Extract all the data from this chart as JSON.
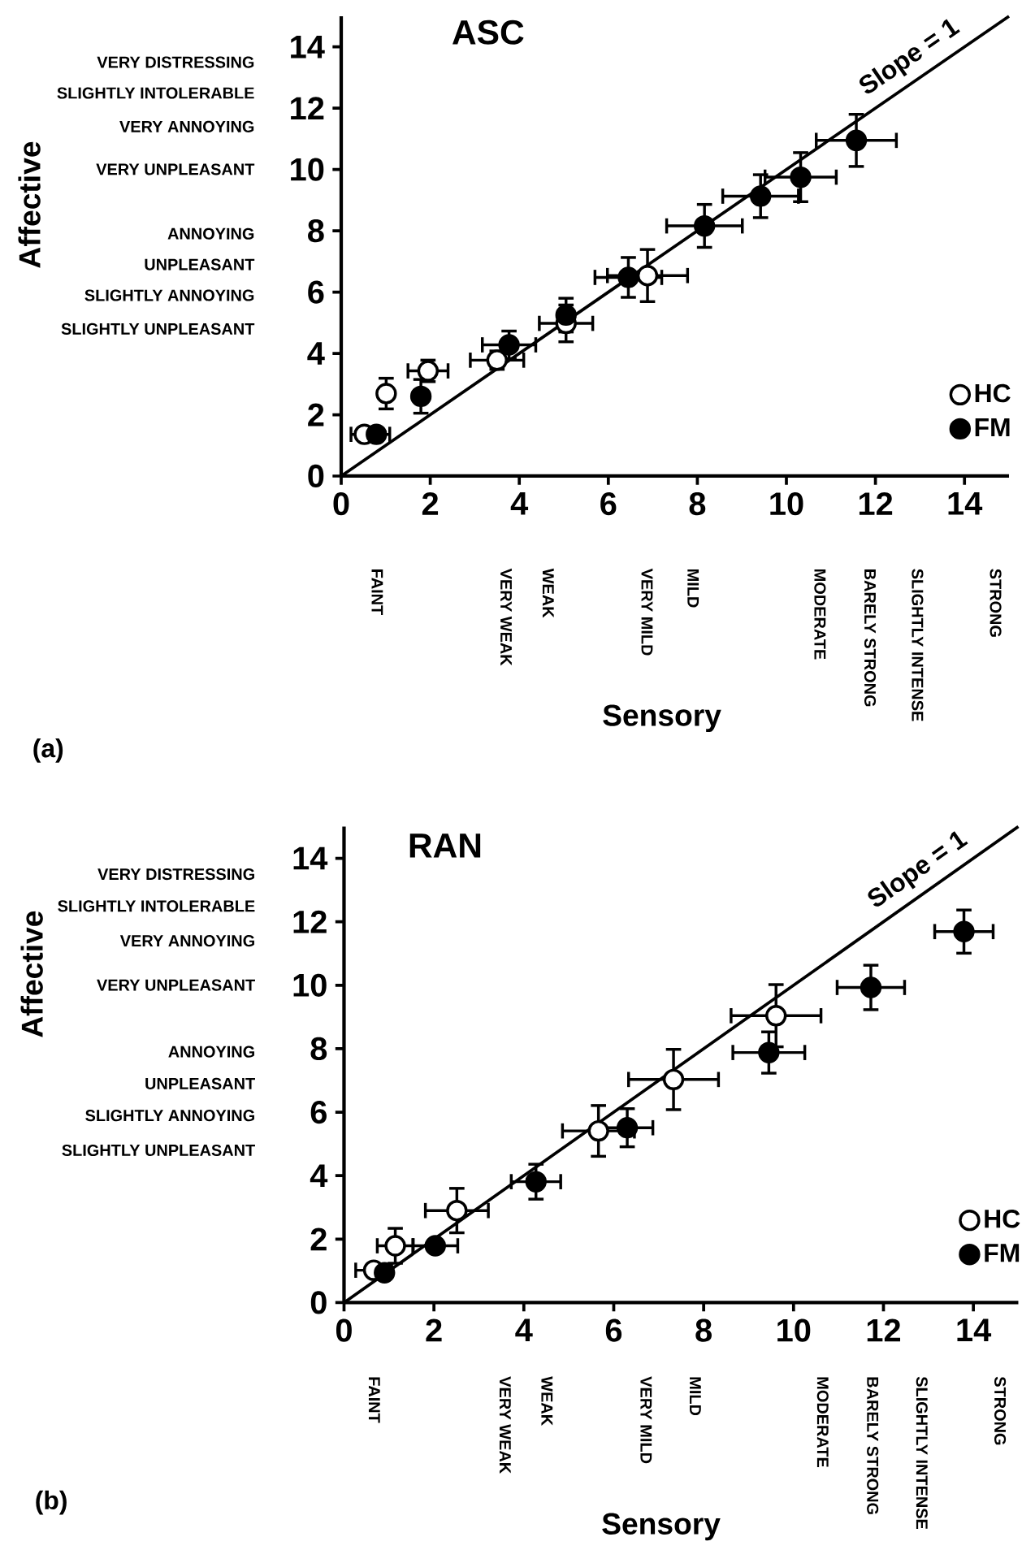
{
  "chart_data": [
    {
      "type": "scatter",
      "title": "ASC",
      "xlabel": "Sensory",
      "ylabel": "Affective",
      "xlim": [
        0,
        15
      ],
      "ylim": [
        0,
        15
      ],
      "xticks": [
        0,
        2,
        4,
        6,
        8,
        10,
        12,
        14
      ],
      "yticks": [
        0,
        2,
        4,
        6,
        8,
        10,
        12,
        14
      ],
      "annotations": [
        "FAINT",
        "VERY WEAK",
        "WEAK",
        "VERY MILD",
        "MILD",
        "MODERATE",
        "BARELY STRONG",
        "SLIGHTLY INTENSE",
        "STRONG",
        "VERY DISTRESSING",
        "SLIGHTLY INTOLERABLE",
        "VERY ANNOYING",
        "VERY UNPLEASANT",
        "ANNOYING",
        "UNPLEASANT",
        "SLIGHTLY ANNOYING",
        "SLIGHTLY UNPLEASANT",
        "(a)"
      ],
      "legend": "bottom right",
      "series": [
        {
          "name": "Slope = 1",
          "type": "line",
          "color": "#000000",
          "line_style": "solid",
          "marker": "none",
          "x": [
            0,
            15
          ],
          "values": [
            0,
            15
          ]
        },
        {
          "name": "HC",
          "color": "#ffffff",
          "marker": "circle",
          "x": [
            0.52,
            1.01,
            1.95,
            3.5,
            5.05,
            6.88
          ],
          "values": [
            1.36,
            2.69,
            3.43,
            3.78,
            4.98,
            6.54
          ],
          "xerrors": [
            0.3,
            null,
            0.45,
            0.6,
            0.6,
            0.9
          ],
          "errors": [
            null,
            0.5,
            0.35,
            0.3,
            0.6,
            0.85
          ]
        },
        {
          "name": "FM",
          "color": "#000000",
          "marker": "circle",
          "x": [
            0.79,
            1.79,
            3.77,
            5.05,
            6.45,
            8.16,
            9.42,
            10.32,
            11.57
          ],
          "values": [
            1.36,
            2.6,
            4.28,
            5.25,
            6.48,
            8.16,
            9.13,
            9.75,
            10.95
          ],
          "xerrors": [
            0.3,
            null,
            0.6,
            null,
            0.75,
            0.85,
            0.85,
            0.8,
            0.9
          ],
          "errors": [
            null,
            0.55,
            0.45,
            0.55,
            0.65,
            0.7,
            0.7,
            0.8,
            0.85
          ]
        }
      ]
    },
    {
      "type": "scatter",
      "title": "RAN",
      "xlabel": "Sensory",
      "ylabel": "Affective",
      "xlim": [
        0,
        15
      ],
      "ylim": [
        0,
        15
      ],
      "xticks": [
        0,
        2,
        4,
        6,
        8,
        10,
        12,
        14
      ],
      "yticks": [
        0,
        2,
        4,
        6,
        8,
        10,
        12,
        14
      ],
      "annotations": [
        "FAINT",
        "VERY WEAK",
        "WEAK",
        "VERY MILD",
        "MILD",
        "MODERATE",
        "BARELY STRONG",
        "SLIGHTLY INTENSE",
        "STRONG",
        "VERY DISTRESSING",
        "SLIGHTLY INTOLERABLE",
        "VERY ANNOYING",
        "VERY UNPLEASANT",
        "ANNOYING",
        "UNPLEASANT",
        "SLIGHTLY ANNOYING",
        "SLIGHTLY UNPLEASANT",
        "(b)"
      ],
      "legend": "bottom right",
      "series": [
        {
          "name": "Slope = 1",
          "type": "line",
          "color": "#000000",
          "line_style": "solid",
          "marker": "none",
          "x": [
            0,
            15
          ],
          "values": [
            0,
            15
          ]
        },
        {
          "name": "HC",
          "color": "#ffffff",
          "marker": "circle",
          "x": [
            0.66,
            1.14,
            2.51,
            5.66,
            7.33,
            9.61
          ],
          "values": [
            1.02,
            1.79,
            2.9,
            5.41,
            7.03,
            9.04
          ],
          "xerrors": [
            0.4,
            0.4,
            0.7,
            0.8,
            1.0,
            1.0
          ],
          "errors": [
            null,
            0.55,
            0.7,
            0.8,
            0.95,
            0.98
          ]
        },
        {
          "name": "FM",
          "color": "#000000",
          "marker": "circle",
          "x": [
            0.9,
            2.03,
            4.27,
            6.3,
            9.45,
            11.72,
            13.79
          ],
          "values": [
            0.94,
            1.79,
            3.81,
            5.51,
            7.88,
            9.93,
            11.69
          ],
          "xerrors": [
            null,
            0.5,
            0.55,
            0.57,
            0.8,
            0.75,
            0.65
          ],
          "errors": [
            null,
            null,
            0.55,
            0.6,
            0.65,
            0.7,
            0.68
          ]
        }
      ]
    }
  ]
}
